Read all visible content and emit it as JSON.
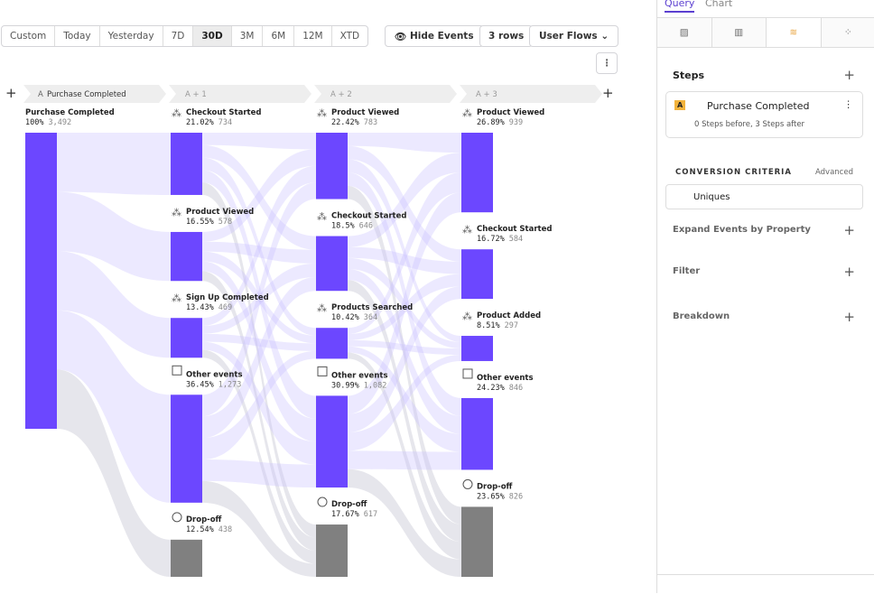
{
  "toolbar": {
    "date_ranges": [
      "Custom",
      "Today",
      "Yesterday",
      "7D",
      "30D",
      "3M",
      "6M",
      "12M",
      "XTD"
    ],
    "hide_events": "Hide Events",
    "rows": "3 rows",
    "view": "User Flows"
  },
  "flow": {
    "columns": [
      {
        "badge": "A",
        "header": "Purchase Completed",
        "nodes": [
          {
            "kind": "start",
            "name": "Purchase Completed",
            "value": 100,
            "value_label": "100%",
            "count": "3,492"
          }
        ]
      },
      {
        "header": "A + 1",
        "nodes": [
          {
            "kind": "event",
            "name": "Checkout Started",
            "value": 21.02,
            "value_label": "21.02%",
            "count": "734"
          },
          {
            "kind": "event",
            "name": "Product Viewed",
            "value": 16.55,
            "value_label": "16.55%",
            "count": "578"
          },
          {
            "kind": "event",
            "name": "Sign Up Completed",
            "value": 13.43,
            "value_label": "13.43%",
            "count": "469"
          },
          {
            "kind": "other",
            "name": "Other events",
            "value": 36.45,
            "value_label": "36.45%",
            "count": "1,273"
          },
          {
            "kind": "dropoff",
            "name": "Drop-off",
            "value": 12.54,
            "value_label": "12.54%",
            "count": "438"
          }
        ]
      },
      {
        "header": "A + 2",
        "nodes": [
          {
            "kind": "event",
            "name": "Product Viewed",
            "value": 22.42,
            "value_label": "22.42%",
            "count": "783"
          },
          {
            "kind": "event",
            "name": "Checkout Started",
            "value": 18.5,
            "value_label": "18.5%",
            "count": "646"
          },
          {
            "kind": "event",
            "name": "Products Searched",
            "value": 10.42,
            "value_label": "10.42%",
            "count": "364"
          },
          {
            "kind": "other",
            "name": "Other events",
            "value": 30.99,
            "value_label": "30.99%",
            "count": "1,082"
          },
          {
            "kind": "dropoff",
            "name": "Drop-off",
            "value": 17.67,
            "value_label": "17.67%",
            "count": "617"
          }
        ]
      },
      {
        "header": "A + 3",
        "nodes": [
          {
            "kind": "event",
            "name": "Product Viewed",
            "value": 26.89,
            "value_label": "26.89%",
            "count": "939"
          },
          {
            "kind": "event",
            "name": "Checkout Started",
            "value": 16.72,
            "value_label": "16.72%",
            "count": "584"
          },
          {
            "kind": "event",
            "name": "Product Added",
            "value": 8.51,
            "value_label": "8.51%",
            "count": "297"
          },
          {
            "kind": "other",
            "name": "Other events",
            "value": 24.23,
            "value_label": "24.23%",
            "count": "846"
          },
          {
            "kind": "dropoff",
            "name": "Drop-off",
            "value": 23.65,
            "value_label": "23.65%",
            "count": "826"
          }
        ]
      }
    ]
  },
  "panel": {
    "tabs": [
      "Query",
      "Chart"
    ],
    "steps_title": "Steps",
    "step": {
      "badge": "A",
      "name": "Purchase Completed",
      "detail": "0 Steps before, 3 Steps after"
    },
    "criteria_title": "CONVERSION CRITERIA",
    "criteria_mode": "Advanced",
    "criteria_value": "Uniques",
    "sections": [
      "Expand Events by Property",
      "Filter",
      "Breakdown"
    ]
  }
}
